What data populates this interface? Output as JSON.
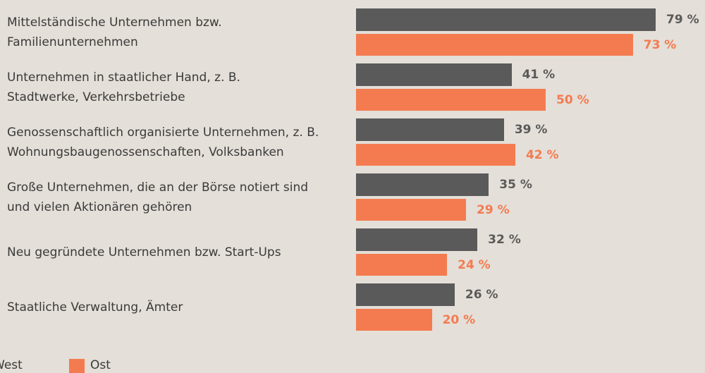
{
  "chart_data": {
    "type": "bar",
    "orientation": "horizontal",
    "categories": [
      "Mittelständische Unternehmen bzw.\nFamilienunternehmen",
      "Unternehmen in staatlicher Hand, z. B.\nStadtwerke, Verkehrsbetriebe",
      "Genossenschaftlich organisierte Unternehmen, z. B.\nWohnungsbaugenossenschaften, Volksbanken",
      "Große Unternehmen, die an der Börse notiert sind\nund vielen Aktionären gehören",
      "Neu gegründete Unternehmen bzw. Start-Ups",
      "Staatliche Verwaltung, Ämter"
    ],
    "series": [
      {
        "name": "West",
        "color": "#5a5a5a",
        "values": [
          79,
          41,
          39,
          35,
          32,
          26
        ],
        "value_labels": [
          "79 %",
          "41 %",
          "39 %",
          "35 %",
          "32 %",
          "26 %"
        ]
      },
      {
        "name": "Ost",
        "color": "#f47b50",
        "values": [
          73,
          50,
          42,
          29,
          24,
          20
        ],
        "value_labels": [
          "73 %",
          "50 %",
          "42 %",
          "29 %",
          "24 %",
          "20 %"
        ]
      }
    ],
    "legend": "bottom-left"
  }
}
